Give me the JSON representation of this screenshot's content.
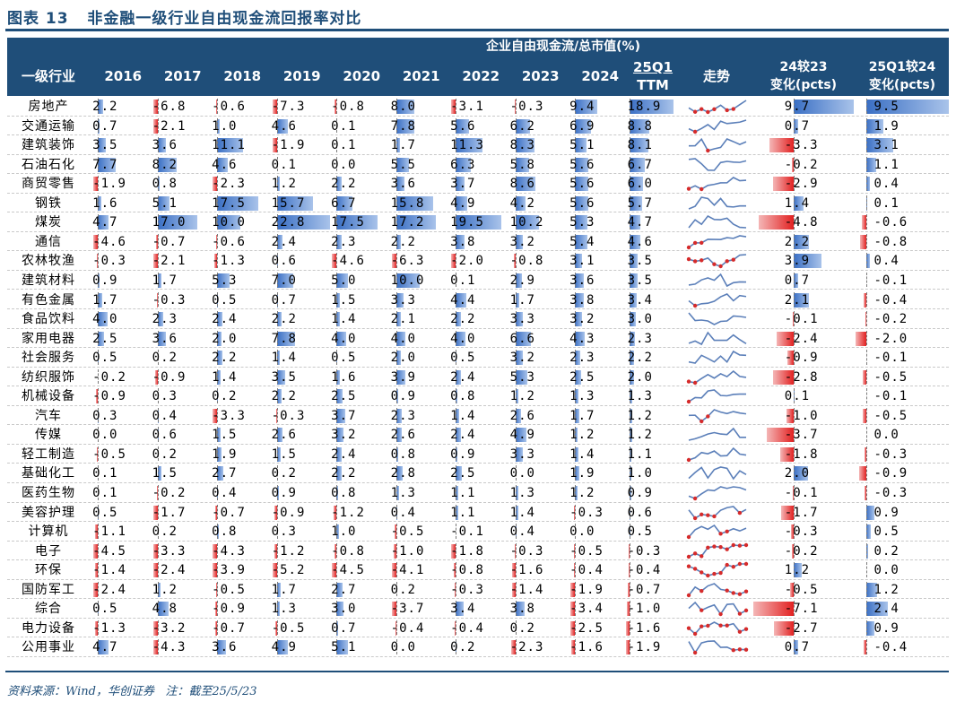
{
  "title": "图表 13   非金融一级行业自由现金流回报率对比",
  "header": {
    "group_label": "企业自由现金流/总市值(%)",
    "industry_label": "一级行业",
    "years": [
      "2016",
      "2017",
      "2018",
      "2019",
      "2020",
      "2021",
      "2022",
      "2023",
      "2024"
    ],
    "ttm_line1": "25Q1",
    "ttm_line2": "TTM",
    "trend_label": "走势",
    "chg1_line1": "24较23",
    "chg1_line2": "变化(pcts)",
    "chg2_line1": "25Q1较24",
    "chg2_line2": "变化(pcts)"
  },
  "colors": {
    "header_bg": "#1F4E79",
    "positive_bar": "#4472C4",
    "negative_bar": "#E22121",
    "sparkline": "#5B7FB9",
    "spark_marker": "#D62B2B"
  },
  "rows": [
    {
      "name": "房地产",
      "values": [
        2.2,
        -6.8,
        -0.6,
        -7.3,
        -0.8,
        8.0,
        -3.1,
        -0.3,
        9.4
      ],
      "ttm": 18.9,
      "chg1": 9.7,
      "chg2": 9.5
    },
    {
      "name": "交通运输",
      "values": [
        0.7,
        -2.1,
        1.0,
        4.6,
        0.1,
        7.8,
        5.6,
        6.2,
        6.9
      ],
      "ttm": 8.8,
      "chg1": 0.7,
      "chg2": 1.9
    },
    {
      "name": "建筑装饰",
      "values": [
        3.5,
        3.6,
        11.1,
        -1.9,
        0.1,
        1.7,
        11.3,
        8.3,
        5.1
      ],
      "ttm": 8.1,
      "chg1": -3.3,
      "chg2": 3.1
    },
    {
      "name": "石油石化",
      "values": [
        7.7,
        8.2,
        4.6,
        0.1,
        0.0,
        5.5,
        6.3,
        5.8,
        5.6
      ],
      "ttm": 6.7,
      "chg1": -0.2,
      "chg2": 1.1
    },
    {
      "name": "商贸零售",
      "values": [
        -1.9,
        0.8,
        -2.3,
        1.2,
        2.2,
        3.6,
        3.7,
        8.6,
        5.6
      ],
      "ttm": 6.0,
      "chg1": -2.9,
      "chg2": 0.4
    },
    {
      "name": "钢铁",
      "values": [
        1.6,
        5.1,
        17.5,
        15.7,
        6.7,
        15.8,
        4.9,
        4.2,
        5.6
      ],
      "ttm": 5.7,
      "chg1": 1.4,
      "chg2": 0.1
    },
    {
      "name": "煤炭",
      "values": [
        4.7,
        17.0,
        10.0,
        22.8,
        17.5,
        17.2,
        19.5,
        10.2,
        5.3
      ],
      "ttm": 4.7,
      "chg1": -4.8,
      "chg2": -0.6
    },
    {
      "name": "通信",
      "values": [
        -4.6,
        -0.7,
        -0.6,
        2.4,
        2.3,
        2.2,
        3.8,
        3.2,
        5.4
      ],
      "ttm": 4.6,
      "chg1": 2.2,
      "chg2": -0.8
    },
    {
      "name": "农林牧渔",
      "values": [
        -0.3,
        -2.1,
        -1.3,
        0.6,
        -4.6,
        -6.3,
        -2.0,
        -0.8,
        3.1
      ],
      "ttm": 3.5,
      "chg1": 3.9,
      "chg2": 0.4
    },
    {
      "name": "建筑材料",
      "values": [
        0.9,
        1.7,
        5.3,
        7.0,
        5.0,
        10.0,
        0.1,
        2.9,
        3.6
      ],
      "ttm": 3.5,
      "chg1": 0.7,
      "chg2": -0.1
    },
    {
      "name": "有色金属",
      "values": [
        1.7,
        -0.3,
        0.5,
        0.7,
        1.5,
        3.3,
        4.4,
        1.7,
        3.8
      ],
      "ttm": 3.4,
      "chg1": 2.1,
      "chg2": -0.4
    },
    {
      "name": "食品饮料",
      "values": [
        4.0,
        2.3,
        2.4,
        2.2,
        1.4,
        2.1,
        2.2,
        3.3,
        3.2
      ],
      "ttm": 3.0,
      "chg1": -0.1,
      "chg2": -0.2
    },
    {
      "name": "家用电器",
      "values": [
        2.5,
        3.6,
        2.0,
        7.8,
        4.0,
        4.0,
        4.0,
        6.6,
        4.3
      ],
      "ttm": 2.3,
      "chg1": -2.4,
      "chg2": -2.0
    },
    {
      "name": "社会服务",
      "values": [
        0.5,
        0.2,
        2.2,
        1.4,
        0.5,
        2.0,
        0.5,
        3.2,
        2.3
      ],
      "ttm": 2.2,
      "chg1": -0.9,
      "chg2": -0.1
    },
    {
      "name": "纺织服饰",
      "values": [
        -0.2,
        -0.9,
        1.4,
        3.5,
        1.6,
        3.9,
        2.4,
        5.3,
        2.5
      ],
      "ttm": 2.0,
      "chg1": -2.8,
      "chg2": -0.5
    },
    {
      "name": "机械设备",
      "values": [
        -0.9,
        0.3,
        0.2,
        2.2,
        2.5,
        0.9,
        0.8,
        1.2,
        1.3
      ],
      "ttm": 1.3,
      "chg1": 0.1,
      "chg2": -0.1
    },
    {
      "name": "汽车",
      "values": [
        0.3,
        0.4,
        -3.3,
        -0.3,
        3.7,
        2.3,
        1.4,
        2.6,
        1.7
      ],
      "ttm": 1.2,
      "chg1": -1.0,
      "chg2": -0.5
    },
    {
      "name": "传媒",
      "values": [
        0.0,
        0.6,
        1.5,
        2.6,
        3.2,
        2.6,
        2.4,
        4.9,
        1.2
      ],
      "ttm": 1.2,
      "chg1": -3.7,
      "chg2": 0.0
    },
    {
      "name": "轻工制造",
      "values": [
        -0.5,
        0.2,
        1.9,
        1.5,
        2.4,
        0.8,
        0.9,
        3.3,
        1.4
      ],
      "ttm": 1.1,
      "chg1": -1.8,
      "chg2": -0.3
    },
    {
      "name": "基础化工",
      "values": [
        0.1,
        1.5,
        2.7,
        0.2,
        2.2,
        2.8,
        2.5,
        0.0,
        1.9
      ],
      "ttm": 1.0,
      "chg1": 2.0,
      "chg2": -0.9
    },
    {
      "name": "医药生物",
      "values": [
        0.1,
        -0.2,
        0.4,
        0.9,
        0.8,
        1.3,
        1.1,
        1.3,
        1.2
      ],
      "ttm": 0.9,
      "chg1": -0.1,
      "chg2": -0.3
    },
    {
      "name": "美容护理",
      "values": [
        0.5,
        -1.7,
        -0.7,
        -0.9,
        -1.2,
        0.4,
        1.1,
        1.4,
        -0.3
      ],
      "ttm": 0.6,
      "chg1": -1.7,
      "chg2": 0.9
    },
    {
      "name": "计算机",
      "values": [
        -1.1,
        0.2,
        0.8,
        0.3,
        1.0,
        -0.5,
        -0.1,
        0.4,
        0.0
      ],
      "ttm": 0.5,
      "chg1": -0.3,
      "chg2": 0.5
    },
    {
      "name": "电子",
      "values": [
        -4.5,
        -3.3,
        -4.3,
        -1.2,
        -0.8,
        -1.0,
        -1.8,
        -0.3,
        -0.5
      ],
      "ttm": -0.3,
      "chg1": -0.2,
      "chg2": 0.2
    },
    {
      "name": "环保",
      "values": [
        -1.4,
        -2.4,
        -3.9,
        -5.2,
        -4.5,
        -4.1,
        -0.8,
        -1.6,
        -0.4
      ],
      "ttm": -0.4,
      "chg1": 1.2,
      "chg2": 0.0
    },
    {
      "name": "国防军工",
      "values": [
        -2.4,
        1.2,
        -0.5,
        1.7,
        2.7,
        0.2,
        -0.3,
        -1.4,
        -1.9
      ],
      "ttm": -0.7,
      "chg1": -0.5,
      "chg2": 1.2
    },
    {
      "name": "综合",
      "values": [
        0.5,
        4.8,
        -0.9,
        1.3,
        3.0,
        -3.7,
        3.4,
        3.8,
        -3.4
      ],
      "ttm": -1.0,
      "chg1": -7.1,
      "chg2": 2.4
    },
    {
      "name": "电力设备",
      "values": [
        -1.3,
        -3.2,
        -0.7,
        -0.5,
        0.7,
        -0.4,
        -0.4,
        0.2,
        -2.5
      ],
      "ttm": -1.6,
      "chg1": -2.7,
      "chg2": 0.9
    },
    {
      "name": "公用事业",
      "values": [
        4.7,
        -4.3,
        3.6,
        4.9,
        5.1,
        0.0,
        0.2,
        -2.3,
        -1.6
      ],
      "ttm": -1.9,
      "chg1": 0.7,
      "chg2": -0.4
    }
  ],
  "source": "资料来源：Wind，华创证券   注：截至25/5/23"
}
